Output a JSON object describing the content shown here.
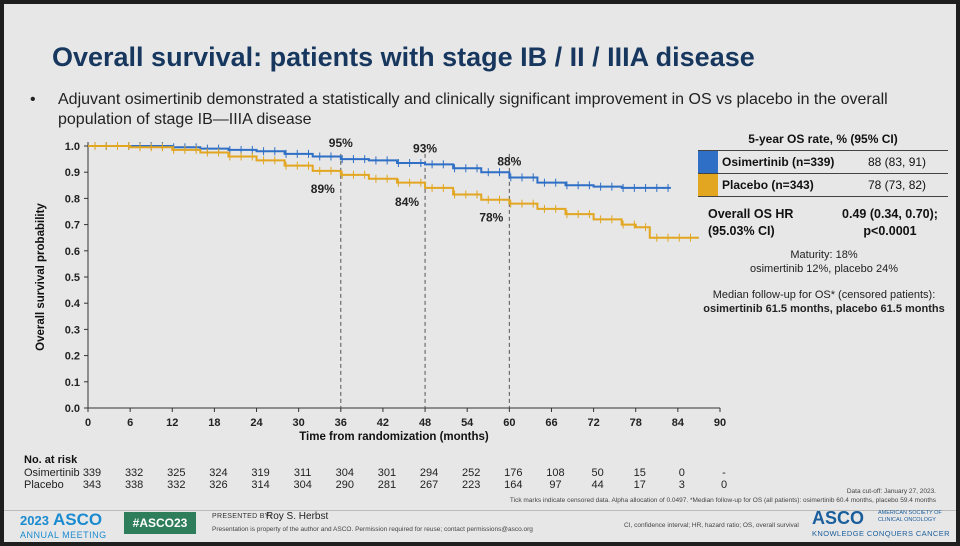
{
  "title": "Overall survival: patients with stage IB / II / IIIA disease",
  "bullet": "Adjuvant osimertinib demonstrated a statistically and clinically significant improvement in OS vs placebo in the overall population of stage IB—IIIA disease",
  "bullet_dot": "•",
  "legend": {
    "header": "5-year OS rate, % (95% CI)",
    "rows": [
      {
        "name": "Osimertinib (n=339)",
        "value": "88 (83, 91)",
        "color": "#2f6fc5"
      },
      {
        "name": "Placebo (n=343)",
        "value": "78 (73, 82)",
        "color": "#e2a620"
      }
    ]
  },
  "hr": {
    "label_line1": "Overall OS HR",
    "label_line2": "(95.03% CI)",
    "value_line1": "0.49 (0.34, 0.70);",
    "value_line2": "p<0.0001"
  },
  "maturity": {
    "line1": "Maturity: 18%",
    "line2": "osimertinib 12%, placebo 24%"
  },
  "followup": {
    "line1": "Median follow-up for OS* (censored patients):",
    "line2": "osimertinib 61.5 months, placebo 61.5 months"
  },
  "risk": {
    "title": "No. at risk",
    "rows": [
      {
        "label": "Osimertinib",
        "values": [
          "339",
          "332",
          "325",
          "324",
          "319",
          "311",
          "304",
          "301",
          "294",
          "252",
          "176",
          "108",
          "50",
          "15",
          "0",
          "-"
        ]
      },
      {
        "label": "Placebo",
        "values": [
          "343",
          "338",
          "332",
          "326",
          "314",
          "304",
          "290",
          "281",
          "267",
          "223",
          "164",
          "97",
          "44",
          "17",
          "3",
          "0"
        ]
      }
    ]
  },
  "footer": {
    "asco_year": "2023",
    "asco_name": "ASCO",
    "asco_meeting": "ANNUAL MEETING",
    "hashtag": "#ASCO23",
    "presented_by": "PRESENTED BY:",
    "presenter": "Roy S. Herbst",
    "property": "Presentation is property of the author and ASCO. Permission required for reuse; contact permissions@asco.org",
    "data_cutoff": "Data cut-off: January 27, 2023.",
    "tick_note": "Tick marks indicate censored data. Alpha allocation of 0.0497. *Median follow-up for OS (all patients): osimertinib 60.4 months, placebo 59.4 months",
    "abbrev": "CI, confidence interval; HR, hazard ratio; OS, overall survival",
    "asco_right": "ASCO",
    "asco_society": "AMERICAN SOCIETY OF CLINICAL ONCOLOGY",
    "asco_tagline": "KNOWLEDGE CONQUERS CANCER"
  },
  "chart_data": {
    "type": "line",
    "subtype": "kaplan-meier step",
    "xlabel": "Time from randomization (months)",
    "ylabel": "Overall survival probability",
    "xlim": [
      0,
      90
    ],
    "ylim": [
      0.0,
      1.0
    ],
    "xticks": [
      "0",
      "6",
      "12",
      "18",
      "24",
      "30",
      "36",
      "42",
      "48",
      "54",
      "60",
      "66",
      "72",
      "78",
      "84",
      "90"
    ],
    "yticks": [
      "0.0",
      "0.1",
      "0.2",
      "0.3",
      "0.4",
      "0.5",
      "0.6",
      "0.7",
      "0.8",
      "0.9",
      "1.0"
    ],
    "grid": false,
    "reference_lines_x": [
      36,
      48,
      60
    ],
    "series": [
      {
        "name": "Osimertinib",
        "color": "#2f6fc5",
        "x": [
          0,
          6,
          12,
          16,
          20,
          24,
          28,
          32,
          36,
          40,
          44,
          48,
          52,
          56,
          60,
          64,
          68,
          72,
          76,
          80,
          83
        ],
        "y": [
          1.0,
          1.0,
          0.995,
          0.99,
          0.985,
          0.98,
          0.97,
          0.96,
          0.95,
          0.945,
          0.935,
          0.93,
          0.915,
          0.9,
          0.88,
          0.86,
          0.85,
          0.845,
          0.84,
          0.84,
          0.84
        ]
      },
      {
        "name": "Placebo",
        "color": "#e2a620",
        "x": [
          0,
          6,
          12,
          16,
          20,
          24,
          28,
          32,
          36,
          40,
          44,
          48,
          52,
          56,
          60,
          64,
          68,
          72,
          76,
          78,
          80,
          87
        ],
        "y": [
          1.0,
          0.995,
          0.985,
          0.975,
          0.96,
          0.945,
          0.925,
          0.905,
          0.89,
          0.875,
          0.86,
          0.84,
          0.815,
          0.795,
          0.78,
          0.76,
          0.74,
          0.72,
          0.7,
          0.69,
          0.65,
          0.65
        ]
      }
    ],
    "annotations": [
      {
        "text": "95%",
        "x": 36,
        "y": 0.95,
        "series": "Osimertinib"
      },
      {
        "text": "93%",
        "x": 48,
        "y": 0.93,
        "series": "Osimertinib"
      },
      {
        "text": "88%",
        "x": 60,
        "y": 0.88,
        "series": "Osimertinib"
      },
      {
        "text": "89%",
        "x": 36,
        "y": 0.89,
        "series": "Placebo"
      },
      {
        "text": "84%",
        "x": 48,
        "y": 0.84,
        "series": "Placebo"
      },
      {
        "text": "78%",
        "x": 60,
        "y": 0.78,
        "series": "Placebo"
      }
    ]
  }
}
